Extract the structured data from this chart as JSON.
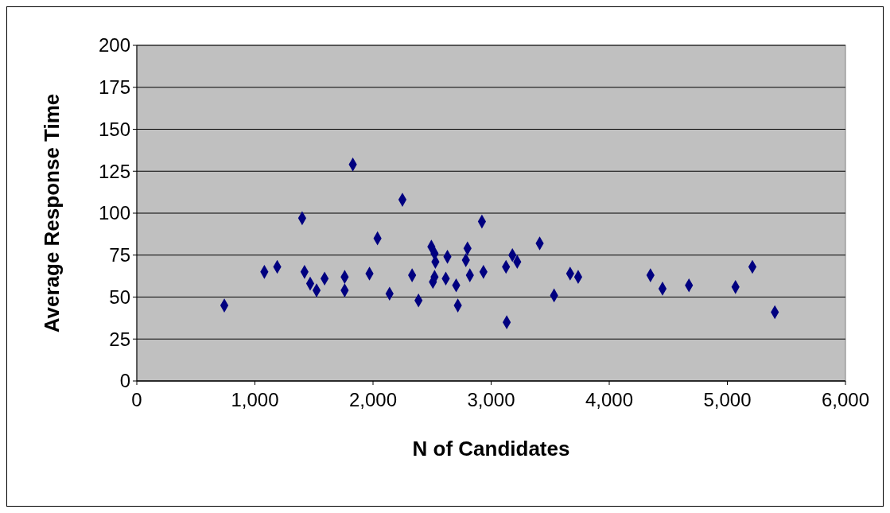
{
  "chart_data": {
    "type": "scatter",
    "xlabel": "N of Candidates",
    "ylabel": "Average Response Time",
    "marker": "diamond",
    "grid": "y",
    "xlim": [
      0,
      6000
    ],
    "xticks": [
      {
        "value": 0,
        "label": "0"
      },
      {
        "value": 1000,
        "label": "1,000"
      },
      {
        "value": 2000,
        "label": "2,000"
      },
      {
        "value": 3000,
        "label": "3,000"
      },
      {
        "value": 4000,
        "label": "4,000"
      },
      {
        "value": 5000,
        "label": "5,000"
      },
      {
        "value": 6000,
        "label": "6,000"
      }
    ],
    "ylim": [
      0,
      200
    ],
    "yticks": [
      0,
      25,
      50,
      75,
      100,
      125,
      150,
      175,
      200
    ],
    "series": [
      {
        "color": "#000080",
        "x": [
          741,
          1080,
          1189,
          1400,
          1420,
          1468,
          1522,
          1590,
          1760,
          1760,
          1829,
          1970,
          2038,
          2140,
          2249,
          2331,
          2385,
          2494,
          2521,
          2528,
          2630,
          2521,
          2507,
          2616,
          2704,
          2718,
          2922,
          2800,
          2786,
          2820,
          2935,
          3126,
          3180,
          3221,
          3132,
          3411,
          3533,
          3669,
          3737,
          4349,
          4451,
          4675,
          5069,
          5212,
          5402
        ],
        "values": [
          45,
          65,
          68,
          97,
          65,
          58,
          54,
          61,
          62,
          54,
          129,
          64,
          85,
          52,
          108,
          63,
          48,
          80,
          76,
          71,
          74,
          62,
          59,
          61,
          57,
          45,
          95,
          79,
          72,
          63,
          65,
          68,
          75,
          71,
          35,
          82,
          51,
          64,
          62,
          63,
          55,
          57,
          56,
          68,
          41
        ]
      }
    ]
  }
}
